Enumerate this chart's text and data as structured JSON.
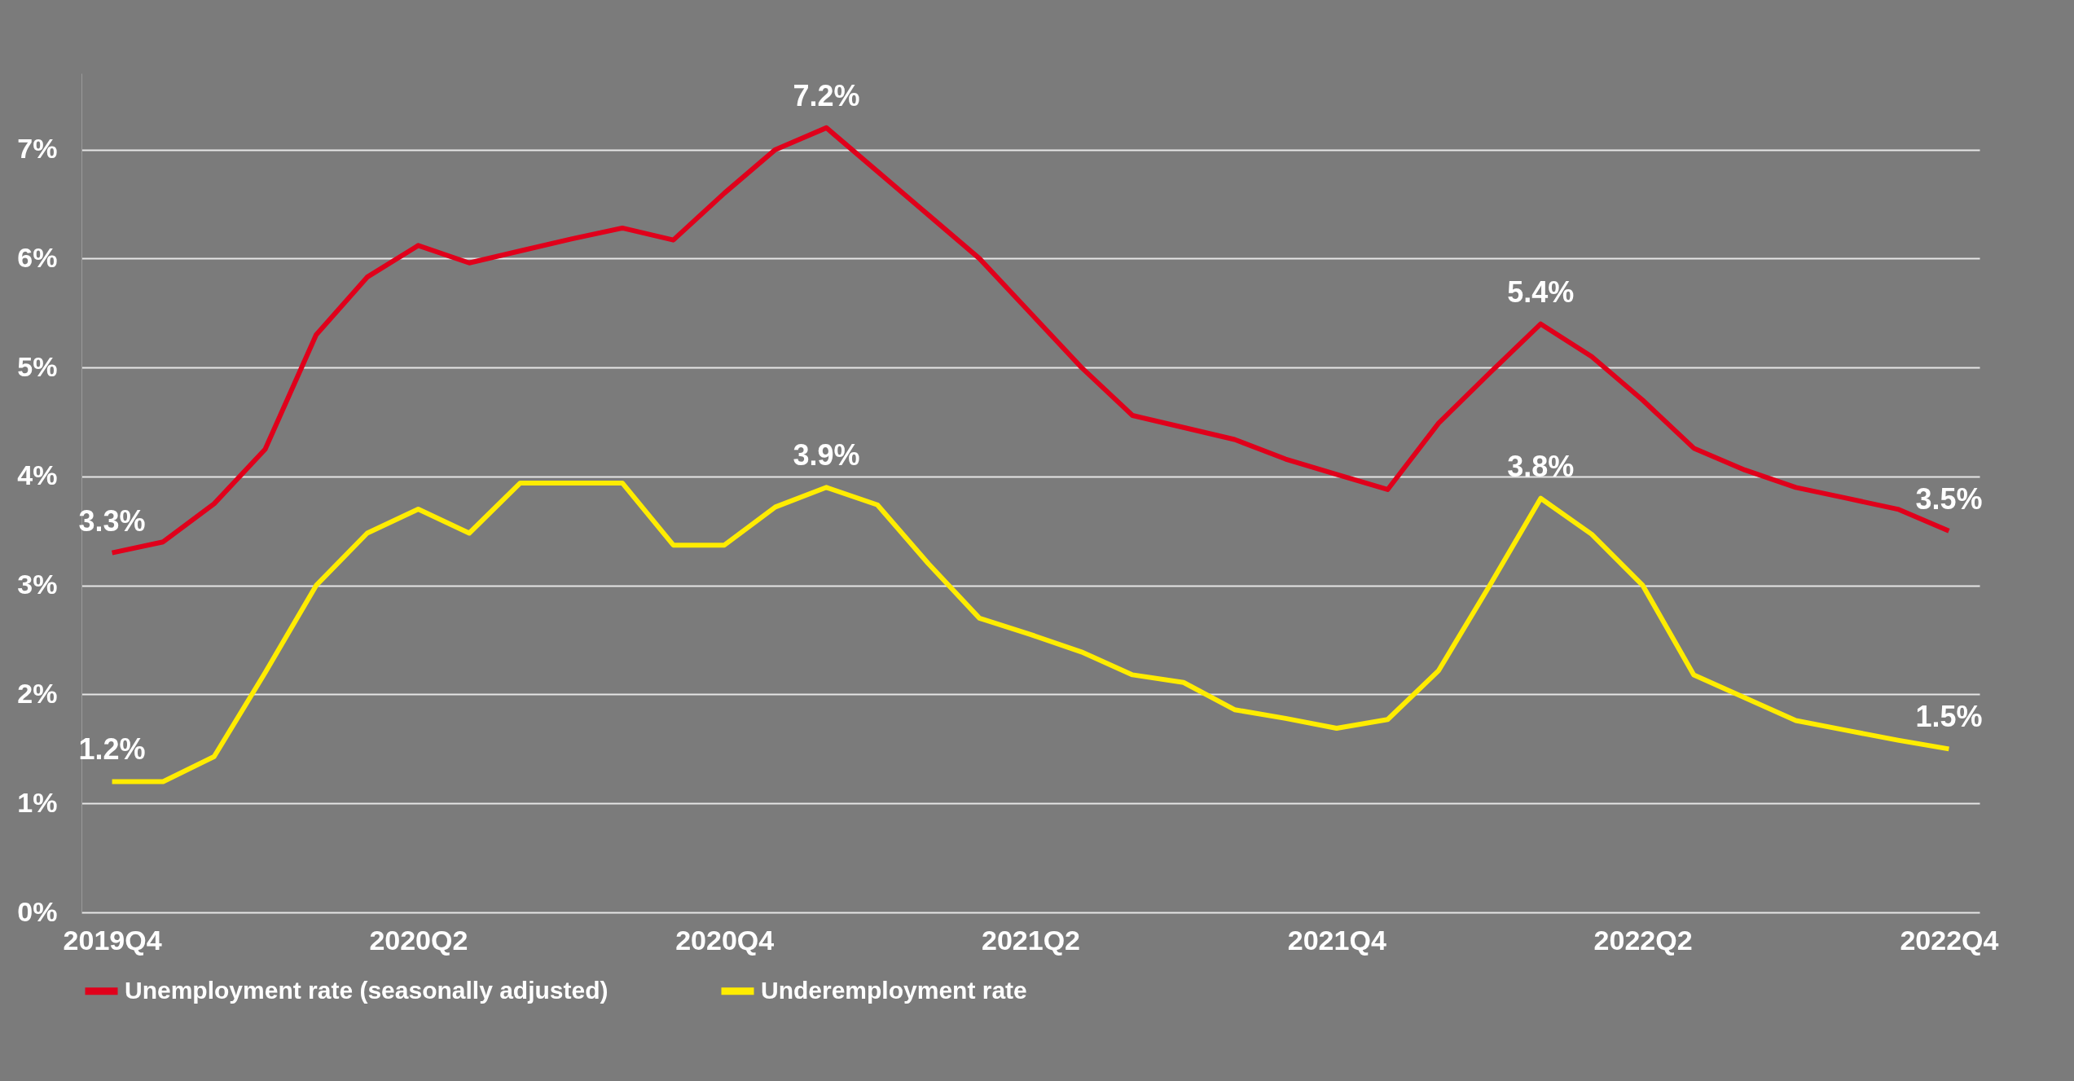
{
  "chart_data": {
    "type": "line",
    "ylim": [
      0,
      7.7
    ],
    "categories": [
      "2019Q4",
      null,
      null,
      null,
      null,
      null,
      "2020Q2",
      null,
      null,
      null,
      null,
      null,
      "2020Q4",
      null,
      null,
      null,
      null,
      null,
      "2021Q2",
      null,
      null,
      null,
      null,
      null,
      "2021Q4",
      null,
      null,
      null,
      null,
      null,
      "2022Q2",
      null,
      null,
      null,
      null,
      null,
      "2022Q4"
    ],
    "yticks": [
      {
        "value": 0,
        "label": "0%"
      },
      {
        "value": 1,
        "label": "1%"
      },
      {
        "value": 2,
        "label": "2%"
      },
      {
        "value": 3,
        "label": "3%"
      },
      {
        "value": 4,
        "label": "4%"
      },
      {
        "value": 5,
        "label": "5%"
      },
      {
        "value": 6,
        "label": "6%"
      },
      {
        "value": 7,
        "label": "7%"
      }
    ],
    "grid": "y",
    "legend": "bottom",
    "line_style": "solid",
    "series": [
      {
        "name": "Unemployment rate (seasonally adjusted)",
        "color": "#e0001b",
        "values": [
          3.3,
          3.4,
          3.75,
          4.25,
          5.3,
          5.83,
          6.12,
          5.96,
          6.07,
          6.18,
          6.28,
          6.17,
          6.6,
          7.0,
          7.2,
          6.8,
          6.4,
          6.0,
          5.5,
          5.0,
          4.56,
          4.45,
          4.34,
          4.16,
          4.02,
          3.88,
          4.49,
          4.95,
          5.4,
          5.1,
          4.7,
          4.26,
          4.06,
          3.9,
          3.8,
          3.7,
          3.5
        ],
        "value_labels": [
          "3.3%",
          null,
          null,
          null,
          null,
          null,
          null,
          null,
          null,
          null,
          null,
          null,
          null,
          null,
          "7.2%",
          null,
          null,
          null,
          null,
          null,
          null,
          null,
          null,
          null,
          null,
          null,
          null,
          null,
          "5.4%",
          null,
          null,
          null,
          null,
          null,
          null,
          null,
          "3.5%"
        ]
      },
      {
        "name": "Underemployment rate",
        "color": "#ffec00",
        "values": [
          1.2,
          1.2,
          1.43,
          2.2,
          3.0,
          3.48,
          3.7,
          3.48,
          3.94,
          3.94,
          3.94,
          3.37,
          3.37,
          3.72,
          3.9,
          3.74,
          3.2,
          2.7,
          2.55,
          2.39,
          2.18,
          2.11,
          1.86,
          1.78,
          1.69,
          1.77,
          2.22,
          3.0,
          3.8,
          3.47,
          3.0,
          2.18,
          1.97,
          1.76,
          1.67,
          1.58,
          1.5
        ],
        "value_labels": [
          "1.2%",
          null,
          null,
          null,
          null,
          null,
          null,
          null,
          null,
          null,
          null,
          null,
          null,
          null,
          "3.9%",
          null,
          null,
          null,
          null,
          null,
          null,
          null,
          null,
          null,
          null,
          null,
          null,
          null,
          "3.8%",
          null,
          null,
          null,
          null,
          null,
          null,
          null,
          "1.5%"
        ]
      }
    ]
  }
}
